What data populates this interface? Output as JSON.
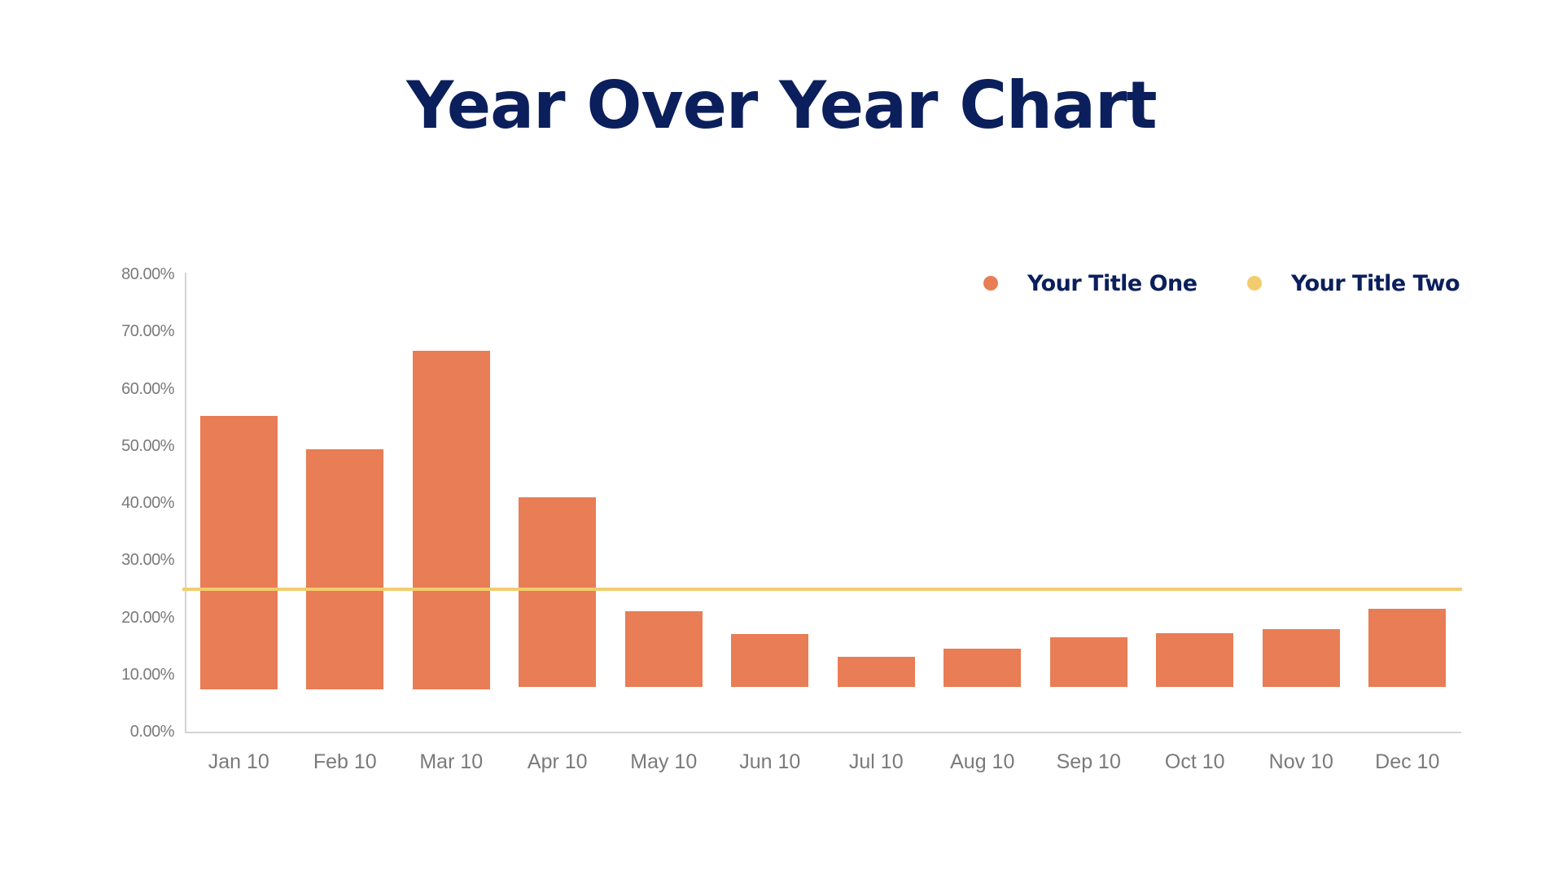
{
  "title": "Year Over Year Chart",
  "colors": {
    "title": "#0b1f5c",
    "series_one": "#e87d56",
    "series_two": "#f2cc6e",
    "axis_text": "#7a7a7a",
    "axis_line": "#d4d4d4"
  },
  "legend": {
    "items": [
      {
        "label": "Your Title One",
        "color": "#e87d56",
        "icon": "circle-dot-icon"
      },
      {
        "label": "Your Title Two",
        "color": "#f2cc6e",
        "icon": "circle-dot-icon"
      }
    ]
  },
  "y_axis": {
    "ticks": [
      "0.00%",
      "10.00%",
      "20.00%",
      "30.00%",
      "40.00%",
      "50.00%",
      "60.00%",
      "70.00%",
      "80.00%"
    ]
  },
  "x_axis": {
    "ticks": [
      "Jan 10",
      "Feb 10",
      "Mar 10",
      "Apr 10",
      "May 10",
      "Jun 10",
      "Jul 10",
      "Aug 10",
      "Sep 10",
      "Oct 10",
      "Nov 10",
      "Dec 10"
    ]
  },
  "chart_data": {
    "type": "bar",
    "title": "Year Over Year Chart",
    "xlabel": "",
    "ylabel": "",
    "ylim": [
      0,
      80
    ],
    "y_format": "percent",
    "grid": false,
    "legend_position": "top-right",
    "categories": [
      "Jan 10",
      "Feb 10",
      "Mar 10",
      "Apr 10",
      "May 10",
      "Jun 10",
      "Jul 10",
      "Aug 10",
      "Sep 10",
      "Oct 10",
      "Nov 10",
      "Dec 10"
    ],
    "series": [
      {
        "name": "Your Title One",
        "type": "floating-bar",
        "color": "#e87d56",
        "top_values": [
          55.4,
          49.5,
          66.8,
          41.1,
          21.2,
          17.2,
          13.3,
          14.7,
          16.7,
          17.4,
          18.1,
          21.6
        ],
        "base_values": [
          7.5,
          7.5,
          7.5,
          7.9,
          7.9,
          7.9,
          7.9,
          7.9,
          7.9,
          7.9,
          7.9,
          7.9
        ]
      },
      {
        "name": "Your Title Two",
        "type": "line",
        "color": "#f2cc6e",
        "values": [
          25.1,
          25.1,
          25.1,
          25.1,
          25.1,
          25.1,
          25.1,
          25.1,
          25.1,
          25.1,
          25.1,
          25.1
        ]
      }
    ]
  }
}
